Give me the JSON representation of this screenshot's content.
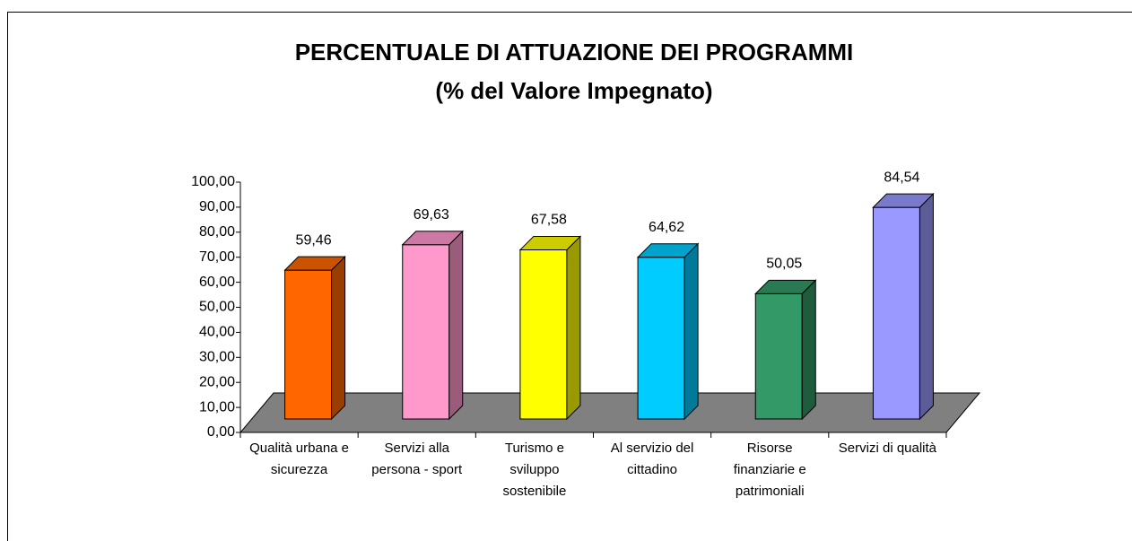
{
  "chart_data": {
    "type": "bar3d",
    "title": "PERCENTUALE DI ATTUAZIONE DEI PROGRAMMI",
    "subtitle": "(% del Valore Impegnato)",
    "categories": [
      "Qualità urbana e sicurezza",
      "Servizi alla persona - sport",
      "Turismo e sviluppo sostenibile",
      "Al servizio del cittadino",
      "Risorse finanziarie e patrimoniali",
      "Servizi di qualità"
    ],
    "values": [
      59.46,
      69.63,
      67.58,
      64.62,
      50.05,
      84.54
    ],
    "value_labels": [
      "59,46",
      "69,63",
      "67,58",
      "64,62",
      "50,05",
      "84,54"
    ],
    "colors": [
      "#ff6600",
      "#ff99cc",
      "#ffff00",
      "#00ccff",
      "#339966",
      "#9999ff"
    ],
    "ylim": [
      0,
      100
    ],
    "yticks": [
      {
        "value": 0,
        "label": "0,00"
      },
      {
        "value": 10,
        "label": "10,00"
      },
      {
        "value": 20,
        "label": "20,00"
      },
      {
        "value": 30,
        "label": "30,00"
      },
      {
        "value": 40,
        "label": "40,00"
      },
      {
        "value": 50,
        "label": "50,00"
      },
      {
        "value": 60,
        "label": "60,00"
      },
      {
        "value": 70,
        "label": "70,00"
      },
      {
        "value": 80,
        "label": "80,00"
      },
      {
        "value": 90,
        "label": "90,00"
      },
      {
        "value": 100,
        "label": "100,00"
      }
    ],
    "floor_color": "#808080"
  }
}
